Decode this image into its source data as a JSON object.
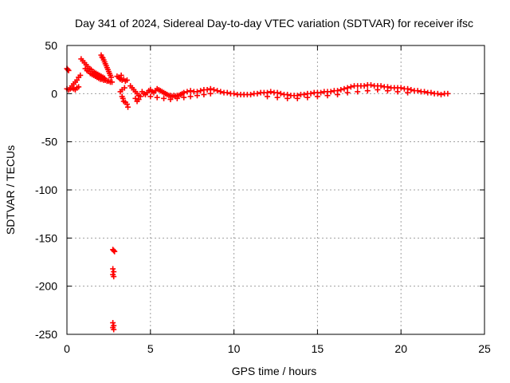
{
  "chart_data": {
    "type": "scatter",
    "title": "Day 341 of 2024, Sidereal Day-to-day VTEC variation (SDTVAR) for receiver ifsc",
    "xlabel": "GPS time / hours",
    "ylabel": "SDTVAR / TECUs",
    "xlim": [
      0,
      25
    ],
    "ylim": [
      -250,
      50
    ],
    "xticks": [
      0,
      5,
      10,
      15,
      20,
      25
    ],
    "yticks": [
      50,
      0,
      -50,
      -100,
      -150,
      -200,
      -250
    ],
    "grid": true,
    "marker": "plus",
    "series": [
      {
        "name": "SDTVAR",
        "color": "#ff0000",
        "points": [
          [
            0.0,
            26
          ],
          [
            0.05,
            25
          ],
          [
            0.1,
            24
          ],
          [
            0.0,
            5
          ],
          [
            0.1,
            4
          ],
          [
            0.2,
            5
          ],
          [
            0.3,
            6
          ],
          [
            0.4,
            5
          ],
          [
            0.5,
            4
          ],
          [
            0.6,
            6
          ],
          [
            0.7,
            7
          ],
          [
            0.3,
            8
          ],
          [
            0.4,
            10
          ],
          [
            0.5,
            12
          ],
          [
            0.6,
            14
          ],
          [
            0.7,
            17
          ],
          [
            0.8,
            19
          ],
          [
            0.85,
            36
          ],
          [
            0.95,
            34
          ],
          [
            1.05,
            32
          ],
          [
            1.15,
            30
          ],
          [
            1.25,
            28
          ],
          [
            1.35,
            26
          ],
          [
            1.45,
            25
          ],
          [
            1.55,
            23
          ],
          [
            1.65,
            22
          ],
          [
            1.75,
            21
          ],
          [
            1.85,
            20
          ],
          [
            1.95,
            19
          ],
          [
            2.05,
            18
          ],
          [
            2.15,
            17
          ],
          [
            2.25,
            16
          ],
          [
            1.1,
            26
          ],
          [
            1.2,
            24
          ],
          [
            1.3,
            23
          ],
          [
            1.4,
            21
          ],
          [
            1.5,
            20
          ],
          [
            1.6,
            19
          ],
          [
            1.7,
            18
          ],
          [
            1.8,
            17
          ],
          [
            1.9,
            16
          ],
          [
            2.0,
            15
          ],
          [
            2.1,
            15
          ],
          [
            2.2,
            14
          ],
          [
            2.3,
            14
          ],
          [
            2.4,
            13
          ],
          [
            2.5,
            13
          ],
          [
            2.6,
            12
          ],
          [
            2.7,
            12
          ],
          [
            2.05,
            40
          ],
          [
            2.1,
            38
          ],
          [
            2.15,
            37
          ],
          [
            2.2,
            35
          ],
          [
            2.25,
            33
          ],
          [
            2.3,
            31
          ],
          [
            2.35,
            29
          ],
          [
            2.4,
            27
          ],
          [
            2.45,
            25
          ],
          [
            2.5,
            23
          ],
          [
            2.55,
            21
          ],
          [
            2.6,
            19
          ],
          [
            2.65,
            17
          ],
          [
            2.8,
            -163
          ],
          [
            2.85,
            -164
          ],
          [
            2.75,
            -162
          ],
          [
            2.75,
            -182
          ],
          [
            2.8,
            -185
          ],
          [
            2.75,
            -188
          ],
          [
            2.8,
            -190
          ],
          [
            2.75,
            -238
          ],
          [
            2.8,
            -241
          ],
          [
            2.75,
            -243
          ],
          [
            2.8,
            -245
          ],
          [
            3.0,
            18
          ],
          [
            3.1,
            17
          ],
          [
            3.2,
            15
          ],
          [
            3.3,
            14
          ],
          [
            3.4,
            15
          ],
          [
            3.5,
            13
          ],
          [
            3.6,
            14
          ],
          [
            3.15,
            16
          ],
          [
            3.25,
            19
          ],
          [
            3.2,
            2
          ],
          [
            3.3,
            -3
          ],
          [
            3.35,
            -5
          ],
          [
            3.4,
            -8
          ],
          [
            3.5,
            -9
          ],
          [
            3.6,
            -11
          ],
          [
            3.65,
            -14
          ],
          [
            3.3,
            4
          ],
          [
            3.45,
            6
          ],
          [
            3.8,
            8
          ],
          [
            3.9,
            6
          ],
          [
            4.0,
            4
          ],
          [
            4.1,
            2
          ],
          [
            4.2,
            0
          ],
          [
            4.3,
            -2
          ],
          [
            4.1,
            -5
          ],
          [
            4.2,
            -8
          ],
          [
            4.3,
            -6
          ],
          [
            4.4,
            -3
          ],
          [
            4.5,
            2
          ],
          [
            4.6,
            0
          ],
          [
            4.7,
            -1
          ],
          [
            4.8,
            1
          ],
          [
            4.9,
            3
          ],
          [
            5.0,
            4
          ],
          [
            5.1,
            2
          ],
          [
            5.2,
            1
          ],
          [
            5.3,
            3
          ],
          [
            5.4,
            5
          ],
          [
            5.5,
            4
          ],
          [
            5.6,
            3
          ],
          [
            5.7,
            2
          ],
          [
            5.8,
            1
          ],
          [
            5.9,
            0
          ],
          [
            6.0,
            -1
          ],
          [
            6.1,
            -2
          ],
          [
            6.2,
            -2
          ],
          [
            6.3,
            -3
          ],
          [
            6.4,
            -2
          ],
          [
            6.5,
            -3
          ],
          [
            6.6,
            -2
          ],
          [
            6.7,
            -2
          ],
          [
            6.8,
            -1
          ],
          [
            6.9,
            0
          ],
          [
            7.0,
            1
          ],
          [
            7.2,
            2
          ],
          [
            7.4,
            3
          ],
          [
            7.6,
            2
          ],
          [
            7.8,
            2
          ],
          [
            8.0,
            3
          ],
          [
            8.2,
            4
          ],
          [
            8.4,
            4
          ],
          [
            8.6,
            5
          ],
          [
            8.8,
            4
          ],
          [
            9.0,
            3
          ],
          [
            9.2,
            2
          ],
          [
            9.4,
            1
          ],
          [
            9.6,
            1
          ],
          [
            9.8,
            0
          ],
          [
            10.0,
            0
          ],
          [
            10.2,
            -1
          ],
          [
            10.4,
            -1
          ],
          [
            10.6,
            -1
          ],
          [
            10.8,
            -1
          ],
          [
            11.0,
            -1
          ],
          [
            11.2,
            0
          ],
          [
            11.4,
            0
          ],
          [
            11.6,
            1
          ],
          [
            11.8,
            1
          ],
          [
            12.0,
            1
          ],
          [
            12.2,
            2
          ],
          [
            12.4,
            1
          ],
          [
            12.6,
            1
          ],
          [
            12.8,
            0
          ],
          [
            13.0,
            -1
          ],
          [
            13.2,
            -1
          ],
          [
            13.4,
            -2
          ],
          [
            13.6,
            -2
          ],
          [
            13.8,
            -2
          ],
          [
            14.0,
            -1
          ],
          [
            14.2,
            -1
          ],
          [
            14.4,
            0
          ],
          [
            14.6,
            0
          ],
          [
            14.8,
            1
          ],
          [
            15.0,
            1
          ],
          [
            15.2,
            1
          ],
          [
            15.4,
            2
          ],
          [
            15.6,
            2
          ],
          [
            15.8,
            2
          ],
          [
            16.0,
            3
          ],
          [
            16.2,
            3
          ],
          [
            16.4,
            4
          ],
          [
            16.6,
            5
          ],
          [
            16.8,
            6
          ],
          [
            17.0,
            7
          ],
          [
            17.2,
            8
          ],
          [
            17.4,
            8
          ],
          [
            17.6,
            8
          ],
          [
            17.8,
            8
          ],
          [
            18.0,
            9
          ],
          [
            18.2,
            9
          ],
          [
            18.4,
            8
          ],
          [
            18.6,
            8
          ],
          [
            18.8,
            8
          ],
          [
            19.0,
            7
          ],
          [
            19.2,
            7
          ],
          [
            19.4,
            6
          ],
          [
            19.6,
            6
          ],
          [
            19.8,
            6
          ],
          [
            20.0,
            6
          ],
          [
            20.2,
            5
          ],
          [
            20.4,
            5
          ],
          [
            20.6,
            4
          ],
          [
            20.8,
            3
          ],
          [
            21.0,
            3
          ],
          [
            21.2,
            2
          ],
          [
            21.4,
            2
          ],
          [
            21.6,
            1
          ],
          [
            21.8,
            1
          ],
          [
            22.0,
            0
          ],
          [
            22.2,
            0
          ],
          [
            22.4,
            -1
          ],
          [
            22.6,
            0
          ],
          [
            22.8,
            0
          ],
          [
            5.0,
            -3
          ],
          [
            5.4,
            -4
          ],
          [
            5.8,
            -5
          ],
          [
            6.2,
            -6
          ],
          [
            6.6,
            -5
          ],
          [
            7.0,
            -4
          ],
          [
            7.4,
            -3
          ],
          [
            7.8,
            -2
          ],
          [
            8.2,
            -1
          ],
          [
            8.6,
            0
          ],
          [
            12.0,
            -3
          ],
          [
            12.6,
            -4
          ],
          [
            13.2,
            -5
          ],
          [
            13.8,
            -5
          ],
          [
            14.4,
            -4
          ],
          [
            15.0,
            -3
          ],
          [
            15.6,
            -2
          ],
          [
            16.2,
            -1
          ],
          [
            16.8,
            1
          ],
          [
            17.4,
            2
          ],
          [
            18.0,
            3
          ],
          [
            18.6,
            4
          ],
          [
            19.2,
            3
          ],
          [
            19.8,
            2
          ],
          [
            20.4,
            1
          ]
        ]
      }
    ]
  }
}
